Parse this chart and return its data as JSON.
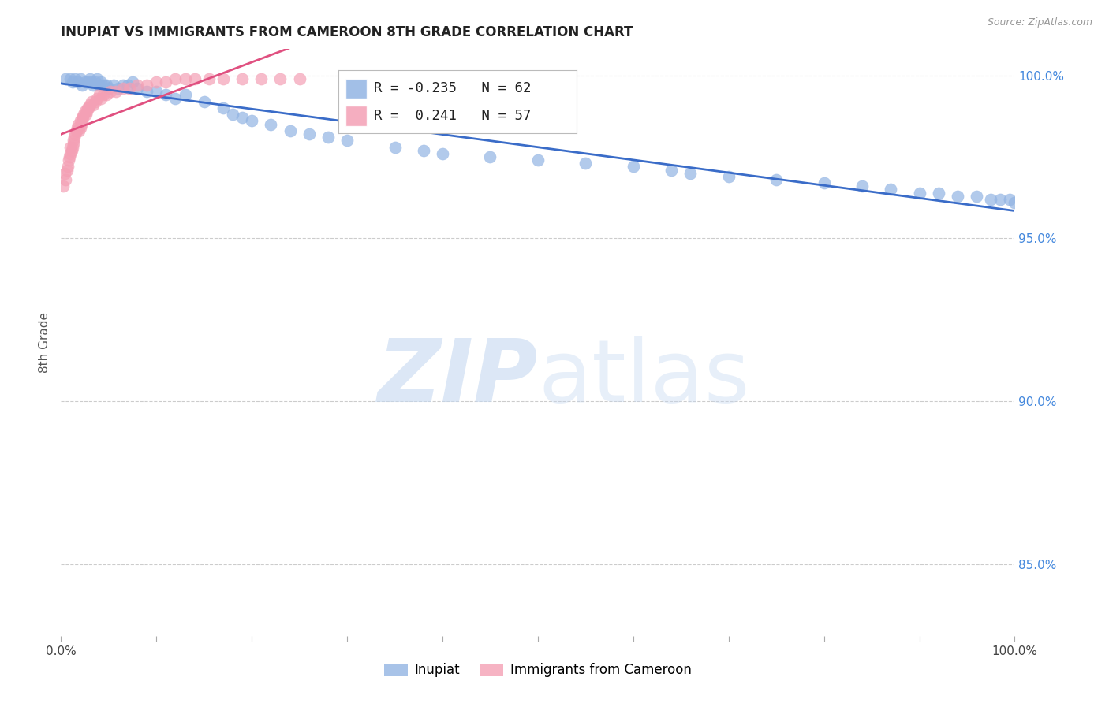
{
  "title": "INUPIAT VS IMMIGRANTS FROM CAMEROON 8TH GRADE CORRELATION CHART",
  "source": "Source: ZipAtlas.com",
  "ylabel": "8th Grade",
  "xlim": [
    0.0,
    1.0
  ],
  "ylim": [
    0.828,
    1.008
  ],
  "yticks": [
    0.85,
    0.9,
    0.95,
    1.0
  ],
  "ytick_labels": [
    "85.0%",
    "90.0%",
    "95.0%",
    "100.0%"
  ],
  "legend_labels": [
    "Inupiat",
    "Immigrants from Cameroon"
  ],
  "inupiat_R": "-0.235",
  "inupiat_N": "62",
  "cameroon_R": "0.241",
  "cameroon_N": "57",
  "blue_color": "#92b4e3",
  "pink_color": "#f4a0b5",
  "blue_line_color": "#3a6cc8",
  "pink_line_color": "#e05080",
  "watermark_zip_color": "#c8d8f0",
  "watermark_atlas_color": "#b8d0ee",
  "title_color": "#222222",
  "axis_label_color": "#555555",
  "right_tick_color": "#4488dd",
  "grid_color": "#cccccc",
  "inupiat_x": [
    0.005,
    0.01,
    0.012,
    0.015,
    0.018,
    0.02,
    0.022,
    0.025,
    0.028,
    0.03,
    0.032,
    0.034,
    0.036,
    0.038,
    0.04,
    0.042,
    0.045,
    0.048,
    0.05,
    0.055,
    0.06,
    0.065,
    0.07,
    0.075,
    0.08,
    0.09,
    0.1,
    0.11,
    0.12,
    0.13,
    0.15,
    0.17,
    0.18,
    0.19,
    0.2,
    0.22,
    0.24,
    0.26,
    0.28,
    0.3,
    0.35,
    0.38,
    0.4,
    0.45,
    0.5,
    0.55,
    0.6,
    0.64,
    0.66,
    0.7,
    0.75,
    0.8,
    0.84,
    0.87,
    0.9,
    0.92,
    0.94,
    0.96,
    0.975,
    0.985,
    0.995,
    1.0
  ],
  "inupiat_y": [
    0.999,
    0.999,
    0.998,
    0.999,
    0.998,
    0.999,
    0.997,
    0.998,
    0.998,
    0.999,
    0.998,
    0.997,
    0.998,
    0.999,
    0.997,
    0.998,
    0.997,
    0.997,
    0.996,
    0.997,
    0.996,
    0.997,
    0.997,
    0.998,
    0.996,
    0.995,
    0.995,
    0.994,
    0.993,
    0.994,
    0.992,
    0.99,
    0.988,
    0.987,
    0.986,
    0.985,
    0.983,
    0.982,
    0.981,
    0.98,
    0.978,
    0.977,
    0.976,
    0.975,
    0.974,
    0.973,
    0.972,
    0.971,
    0.97,
    0.969,
    0.968,
    0.967,
    0.966,
    0.965,
    0.964,
    0.964,
    0.963,
    0.963,
    0.962,
    0.962,
    0.962,
    0.961
  ],
  "cameroon_x": [
    0.002,
    0.004,
    0.005,
    0.006,
    0.007,
    0.008,
    0.009,
    0.01,
    0.01,
    0.011,
    0.012,
    0.013,
    0.013,
    0.014,
    0.015,
    0.016,
    0.017,
    0.018,
    0.019,
    0.02,
    0.02,
    0.021,
    0.022,
    0.022,
    0.023,
    0.024,
    0.025,
    0.026,
    0.027,
    0.028,
    0.029,
    0.03,
    0.032,
    0.034,
    0.036,
    0.038,
    0.04,
    0.042,
    0.044,
    0.048,
    0.052,
    0.058,
    0.065,
    0.072,
    0.08,
    0.09,
    0.1,
    0.11,
    0.12,
    0.13,
    0.14,
    0.155,
    0.17,
    0.19,
    0.21,
    0.23,
    0.25
  ],
  "cameroon_y": [
    0.966,
    0.97,
    0.968,
    0.971,
    0.972,
    0.974,
    0.975,
    0.976,
    0.978,
    0.977,
    0.978,
    0.979,
    0.98,
    0.981,
    0.982,
    0.983,
    0.984,
    0.985,
    0.983,
    0.984,
    0.986,
    0.985,
    0.986,
    0.987,
    0.987,
    0.988,
    0.989,
    0.988,
    0.989,
    0.99,
    0.99,
    0.991,
    0.992,
    0.991,
    0.992,
    0.993,
    0.994,
    0.993,
    0.994,
    0.994,
    0.995,
    0.995,
    0.996,
    0.996,
    0.997,
    0.997,
    0.998,
    0.998,
    0.999,
    0.999,
    0.999,
    0.999,
    0.999,
    0.999,
    0.999,
    0.999,
    0.999
  ]
}
